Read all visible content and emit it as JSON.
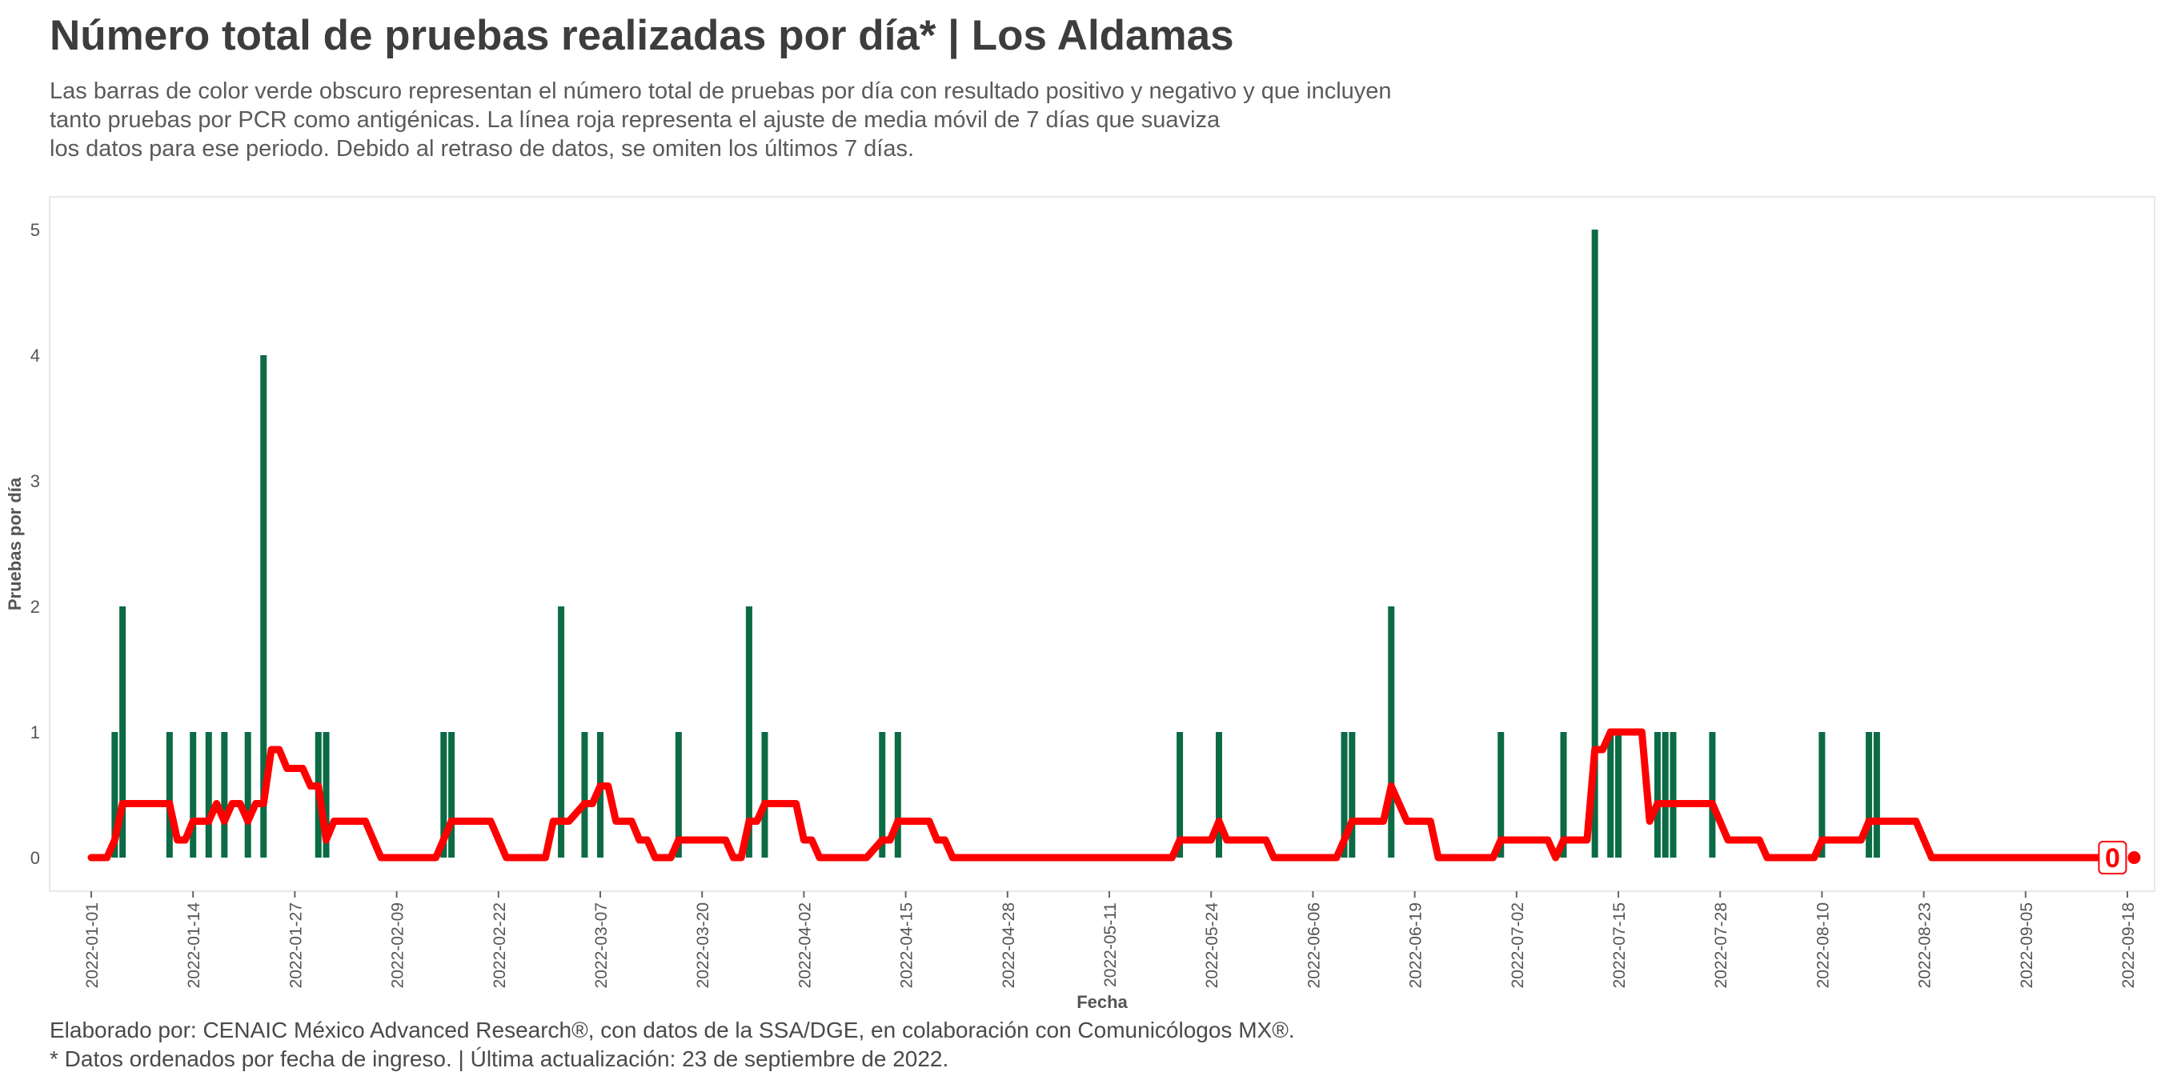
{
  "header": {
    "title": "Número total de pruebas realizadas por día* | Los Aldamas",
    "subtitle_lines": [
      "Las barras de color verde obscuro representan el número total de pruebas por día con resultado positivo y negativo y que incluyen",
      "tanto pruebas por PCR como antigénicas. La línea roja representa el ajuste de media móvil de 7 días que suaviza",
      "los datos para ese periodo. Debido al retraso de datos, se omiten los últimos 7 días."
    ]
  },
  "footer": {
    "line1": "Elaborado por: CENAIC México Advanced Research®, con datos de la SSA/DGE, en colaboración con Comunicólogos MX®.",
    "line2": "* Datos ordenados por fecha de ingreso. | Última actualización: 23 de septiembre de 2022."
  },
  "chart_data": {
    "type": "bar",
    "xlabel": "Fecha",
    "ylabel": "Pruebas por día",
    "x_start": "2022-01-01",
    "x_end": "2022-09-16",
    "ylim": [
      0,
      5
    ],
    "y_ticks": [
      0,
      1,
      2,
      3,
      4,
      5
    ],
    "x_ticks": [
      "2022-01-01",
      "2022-01-14",
      "2022-01-27",
      "2022-02-09",
      "2022-02-22",
      "2022-03-07",
      "2022-03-20",
      "2022-04-02",
      "2022-04-15",
      "2022-04-28",
      "2022-05-11",
      "2022-05-24",
      "2022-06-06",
      "2022-06-19",
      "2022-07-02",
      "2022-07-15",
      "2022-07-28",
      "2022-08-10",
      "2022-08-23",
      "2022-09-05",
      "2022-09-18"
    ],
    "bar_color": "#0b6b45",
    "line_color": "#ff0000",
    "grid": false,
    "series": [
      {
        "kind": "bar",
        "points": [
          [
            "2022-01-04",
            1
          ],
          [
            "2022-01-05",
            2
          ],
          [
            "2022-01-11",
            1
          ],
          [
            "2022-01-14",
            1
          ],
          [
            "2022-01-16",
            1
          ],
          [
            "2022-01-18",
            1
          ],
          [
            "2022-01-21",
            1
          ],
          [
            "2022-01-23",
            4
          ],
          [
            "2022-01-30",
            1
          ],
          [
            "2022-01-31",
            1
          ],
          [
            "2022-02-15",
            1
          ],
          [
            "2022-02-16",
            1
          ],
          [
            "2022-03-02",
            2
          ],
          [
            "2022-03-05",
            1
          ],
          [
            "2022-03-07",
            1
          ],
          [
            "2022-03-17",
            1
          ],
          [
            "2022-03-26",
            2
          ],
          [
            "2022-03-28",
            1
          ],
          [
            "2022-04-12",
            1
          ],
          [
            "2022-04-14",
            1
          ],
          [
            "2022-05-20",
            1
          ],
          [
            "2022-05-25",
            1
          ],
          [
            "2022-06-10",
            1
          ],
          [
            "2022-06-11",
            1
          ],
          [
            "2022-06-16",
            2
          ],
          [
            "2022-06-30",
            1
          ],
          [
            "2022-07-08",
            1
          ],
          [
            "2022-07-12",
            5
          ],
          [
            "2022-07-14",
            1
          ],
          [
            "2022-07-15",
            1
          ],
          [
            "2022-07-20",
            1
          ],
          [
            "2022-07-21",
            1
          ],
          [
            "2022-07-22",
            1
          ],
          [
            "2022-07-27",
            1
          ],
          [
            "2022-08-10",
            1
          ],
          [
            "2022-08-16",
            1
          ],
          [
            "2022-08-17",
            1
          ]
        ]
      },
      {
        "kind": "line",
        "points": [
          [
            "2022-01-01",
            0
          ],
          [
            "2022-01-03",
            0
          ],
          [
            "2022-01-04",
            0.14
          ],
          [
            "2022-01-05",
            0.43
          ],
          [
            "2022-01-11",
            0.43
          ],
          [
            "2022-01-12",
            0.14
          ],
          [
            "2022-01-13",
            0.14
          ],
          [
            "2022-01-14",
            0.29
          ],
          [
            "2022-01-16",
            0.29
          ],
          [
            "2022-01-17",
            0.43
          ],
          [
            "2022-01-18",
            0.29
          ],
          [
            "2022-01-19",
            0.43
          ],
          [
            "2022-01-20",
            0.43
          ],
          [
            "2022-01-21",
            0.29
          ],
          [
            "2022-01-22",
            0.43
          ],
          [
            "2022-01-23",
            0.43
          ],
          [
            "2022-01-24",
            0.86
          ],
          [
            "2022-01-25",
            0.86
          ],
          [
            "2022-01-26",
            0.71
          ],
          [
            "2022-01-28",
            0.71
          ],
          [
            "2022-01-29",
            0.57
          ],
          [
            "2022-01-30",
            0.57
          ],
          [
            "2022-01-31",
            0.14
          ],
          [
            "2022-02-01",
            0.29
          ],
          [
            "2022-02-05",
            0.29
          ],
          [
            "2022-02-07",
            0
          ],
          [
            "2022-02-14",
            0
          ],
          [
            "2022-02-16",
            0.29
          ],
          [
            "2022-02-21",
            0.29
          ],
          [
            "2022-02-23",
            0
          ],
          [
            "2022-02-28",
            0
          ],
          [
            "2022-03-01",
            0.29
          ],
          [
            "2022-03-03",
            0.29
          ],
          [
            "2022-03-05",
            0.43
          ],
          [
            "2022-03-06",
            0.43
          ],
          [
            "2022-03-07",
            0.57
          ],
          [
            "2022-03-08",
            0.57
          ],
          [
            "2022-03-09",
            0.29
          ],
          [
            "2022-03-11",
            0.29
          ],
          [
            "2022-03-12",
            0.14
          ],
          [
            "2022-03-13",
            0.14
          ],
          [
            "2022-03-14",
            0
          ],
          [
            "2022-03-16",
            0
          ],
          [
            "2022-03-17",
            0.14
          ],
          [
            "2022-03-23",
            0.14
          ],
          [
            "2022-03-24",
            0
          ],
          [
            "2022-03-25",
            0
          ],
          [
            "2022-03-26",
            0.29
          ],
          [
            "2022-03-27",
            0.29
          ],
          [
            "2022-03-28",
            0.43
          ],
          [
            "2022-04-01",
            0.43
          ],
          [
            "2022-04-02",
            0.14
          ],
          [
            "2022-04-03",
            0.14
          ],
          [
            "2022-04-04",
            0
          ],
          [
            "2022-04-10",
            0
          ],
          [
            "2022-04-12",
            0.14
          ],
          [
            "2022-04-13",
            0.14
          ],
          [
            "2022-04-14",
            0.29
          ],
          [
            "2022-04-18",
            0.29
          ],
          [
            "2022-04-19",
            0.14
          ],
          [
            "2022-04-20",
            0.14
          ],
          [
            "2022-04-21",
            0
          ],
          [
            "2022-05-19",
            0
          ],
          [
            "2022-05-20",
            0.14
          ],
          [
            "2022-05-24",
            0.14
          ],
          [
            "2022-05-25",
            0.29
          ],
          [
            "2022-05-26",
            0.14
          ],
          [
            "2022-05-31",
            0.14
          ],
          [
            "2022-06-01",
            0
          ],
          [
            "2022-06-09",
            0
          ],
          [
            "2022-06-10",
            0.14
          ],
          [
            "2022-06-11",
            0.29
          ],
          [
            "2022-06-15",
            0.29
          ],
          [
            "2022-06-16",
            0.57
          ],
          [
            "2022-06-17",
            0.43
          ],
          [
            "2022-06-18",
            0.29
          ],
          [
            "2022-06-21",
            0.29
          ],
          [
            "2022-06-22",
            0
          ],
          [
            "2022-06-29",
            0
          ],
          [
            "2022-06-30",
            0.14
          ],
          [
            "2022-07-06",
            0.14
          ],
          [
            "2022-07-07",
            0
          ],
          [
            "2022-07-08",
            0.14
          ],
          [
            "2022-07-11",
            0.14
          ],
          [
            "2022-07-12",
            0.86
          ],
          [
            "2022-07-13",
            0.86
          ],
          [
            "2022-07-14",
            1
          ],
          [
            "2022-07-18",
            1
          ],
          [
            "2022-07-19",
            0.29
          ],
          [
            "2022-07-20",
            0.43
          ],
          [
            "2022-07-27",
            0.43
          ],
          [
            "2022-07-29",
            0.14
          ],
          [
            "2022-08-02",
            0.14
          ],
          [
            "2022-08-03",
            0
          ],
          [
            "2022-08-09",
            0
          ],
          [
            "2022-08-10",
            0.14
          ],
          [
            "2022-08-15",
            0.14
          ],
          [
            "2022-08-16",
            0.29
          ],
          [
            "2022-08-22",
            0.29
          ],
          [
            "2022-08-24",
            0
          ],
          [
            "2022-09-16",
            0
          ]
        ]
      }
    ],
    "end_label": "0"
  }
}
